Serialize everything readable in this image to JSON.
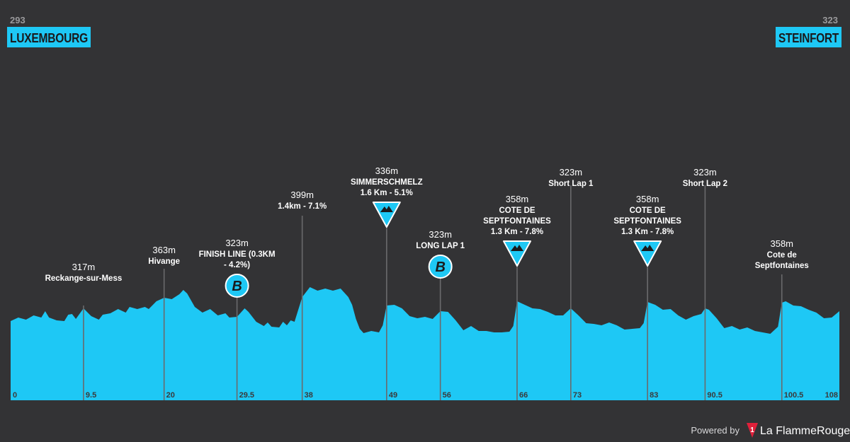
{
  "start": {
    "elevation": "293",
    "name": "LUXEMBOURG"
  },
  "finish": {
    "elevation": "323",
    "name": "STEINFORT"
  },
  "distance_axis": {
    "min": 0,
    "max": 108
  },
  "km_ticks": [
    {
      "km": 0,
      "label": "0"
    },
    {
      "km": 9.5,
      "label": "9.5"
    },
    {
      "km": 20,
      "label": "20"
    },
    {
      "km": 29.5,
      "label": "29.5"
    },
    {
      "km": 38,
      "label": "38"
    },
    {
      "km": 49,
      "label": "49"
    },
    {
      "km": 56,
      "label": "56"
    },
    {
      "km": 66,
      "label": "66"
    },
    {
      "km": 73,
      "label": "73"
    },
    {
      "km": 83,
      "label": "83"
    },
    {
      "km": 90.5,
      "label": "90.5"
    },
    {
      "km": 100.5,
      "label": "100.5"
    },
    {
      "km": 108,
      "label": "108"
    }
  ],
  "points": [
    {
      "km": 9.5,
      "elevation": "317m",
      "name": [
        "Reckange-sur-Mess"
      ],
      "icon": "none"
    },
    {
      "km": 20,
      "elevation": "363m",
      "name": [
        "Hivange"
      ],
      "icon": "none"
    },
    {
      "km": 29.5,
      "elevation": "323m",
      "name": [
        "FINISH LINE (0.3KM",
        "- 4.2%)"
      ],
      "icon": "bonus-b-icon"
    },
    {
      "km": 38,
      "elevation": "399m",
      "name": [
        "1.4km - 7.1%"
      ],
      "icon": "none"
    },
    {
      "km": 49,
      "elevation": "336m",
      "name": [
        "SIMMERSCHMELZ",
        "1.6 Km - 5.1%"
      ],
      "icon": "climb-icon"
    },
    {
      "km": 56,
      "elevation": "323m",
      "name": [
        "LONG LAP 1"
      ],
      "icon": "bonus-b-icon"
    },
    {
      "km": 66,
      "elevation": "358m",
      "name": [
        "COTE DE",
        "SEPTFONTAINES",
        "1.3 Km - 7.8%"
      ],
      "icon": "climb-icon"
    },
    {
      "km": 73,
      "elevation": "323m",
      "name": [
        "Short Lap 1"
      ],
      "icon": "none"
    },
    {
      "km": 83,
      "elevation": "358m",
      "name": [
        "COTE DE",
        "SEPTFONTAINES",
        "1.3 Km - 7.8%"
      ],
      "icon": "climb-icon"
    },
    {
      "km": 90.5,
      "elevation": "323m",
      "name": [
        "Short Lap 2"
      ],
      "icon": "none"
    },
    {
      "km": 100.5,
      "elevation": "358m",
      "name": [
        "Cote de",
        "Septfontaines"
      ],
      "icon": "none"
    }
  ],
  "profile": [
    [
      0,
      454
    ],
    [
      1,
      449
    ],
    [
      2,
      452
    ],
    [
      3,
      446
    ],
    [
      4,
      449
    ],
    [
      4.5,
      440
    ],
    [
      5,
      449
    ],
    [
      6,
      453
    ],
    [
      7,
      454
    ],
    [
      7.5,
      445
    ],
    [
      8,
      444
    ],
    [
      8.5,
      451
    ],
    [
      9.5,
      436
    ],
    [
      10.5,
      447
    ],
    [
      11.5,
      452
    ],
    [
      12,
      445
    ],
    [
      13,
      443
    ],
    [
      14,
      437
    ],
    [
      15,
      442
    ],
    [
      15.5,
      434
    ],
    [
      16.5,
      437
    ],
    [
      17.5,
      434
    ],
    [
      18,
      437
    ],
    [
      19,
      426
    ],
    [
      20,
      421
    ],
    [
      21,
      423
    ],
    [
      22,
      416
    ],
    [
      22.5,
      410
    ],
    [
      23,
      415
    ],
    [
      24,
      434
    ],
    [
      25,
      442
    ],
    [
      26,
      437
    ],
    [
      27,
      446
    ],
    [
      28,
      443
    ],
    [
      28.5,
      449
    ],
    [
      29.5,
      448
    ],
    [
      30.5,
      436
    ],
    [
      31,
      441
    ],
    [
      32,
      455
    ],
    [
      33,
      461
    ],
    [
      33.5,
      456
    ],
    [
      34,
      462
    ],
    [
      35,
      463
    ],
    [
      35.5,
      455
    ],
    [
      36,
      460
    ],
    [
      36.5,
      453
    ],
    [
      37,
      455
    ],
    [
      38,
      420
    ],
    [
      39,
      406
    ],
    [
      40,
      411
    ],
    [
      41,
      408
    ],
    [
      42,
      411
    ],
    [
      43,
      408
    ],
    [
      44,
      420
    ],
    [
      44.5,
      431
    ],
    [
      45,
      451
    ],
    [
      45.5,
      465
    ],
    [
      46,
      471
    ],
    [
      47,
      468
    ],
    [
      48,
      470
    ],
    [
      48.5,
      460
    ],
    [
      49,
      432
    ],
    [
      50,
      431
    ],
    [
      51,
      436
    ],
    [
      52,
      447
    ],
    [
      53,
      450
    ],
    [
      54,
      448
    ],
    [
      55,
      451
    ],
    [
      56,
      440
    ],
    [
      57,
      441
    ],
    [
      58,
      453
    ],
    [
      59,
      467
    ],
    [
      60,
      461
    ],
    [
      61,
      468
    ],
    [
      62,
      468
    ],
    [
      63,
      470
    ],
    [
      64,
      470
    ],
    [
      65,
      469
    ],
    [
      65.5,
      461
    ],
    [
      66,
      426
    ],
    [
      67,
      431
    ],
    [
      68,
      436
    ],
    [
      69,
      437
    ],
    [
      70,
      441
    ],
    [
      71,
      446
    ],
    [
      72,
      446
    ],
    [
      73,
      436
    ],
    [
      74,
      446
    ],
    [
      75,
      457
    ],
    [
      76,
      458
    ],
    [
      77,
      460
    ],
    [
      78,
      456
    ],
    [
      79,
      460
    ],
    [
      80,
      466
    ],
    [
      81,
      465
    ],
    [
      82,
      464
    ],
    [
      82.5,
      457
    ],
    [
      83,
      427
    ],
    [
      84,
      431
    ],
    [
      85,
      438
    ],
    [
      86,
      437
    ],
    [
      87,
      446
    ],
    [
      88,
      452
    ],
    [
      89,
      447
    ],
    [
      90,
      444
    ],
    [
      90.5,
      436
    ],
    [
      91,
      438
    ],
    [
      92,
      450
    ],
    [
      93,
      464
    ],
    [
      94,
      461
    ],
    [
      95,
      466
    ],
    [
      96,
      463
    ],
    [
      97,
      468
    ],
    [
      98,
      470
    ],
    [
      99,
      472
    ],
    [
      100,
      462
    ],
    [
      100.5,
      428
    ],
    [
      101,
      426
    ],
    [
      102,
      432
    ],
    [
      103,
      433
    ],
    [
      104,
      438
    ],
    [
      105,
      442
    ],
    [
      106,
      450
    ],
    [
      107,
      449
    ],
    [
      108,
      440
    ]
  ],
  "footer": {
    "powered_by": "Powered by",
    "brand": "La FlammeRouge",
    "logo_digit": "1"
  },
  "colors": {
    "profile": "#1ec8f5",
    "background": "#333335",
    "brand_red": "#e0203a"
  }
}
